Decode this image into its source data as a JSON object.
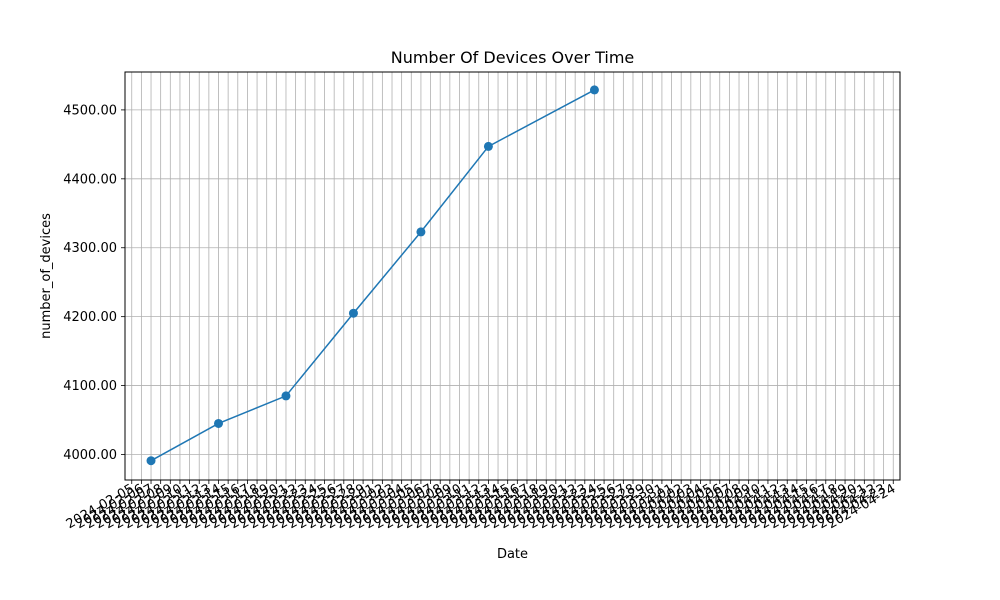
{
  "chart_data": {
    "type": "line",
    "title": "Number Of Devices Over Time",
    "xlabel": "Date",
    "ylabel": "number_of_devices",
    "grid": true,
    "legend": "none",
    "x_tick_labels": [
      "2024-02-05",
      "2024-02-06",
      "2024-02-07",
      "2024-02-08",
      "2024-02-09",
      "2024-02-10",
      "2024-02-11",
      "2024-02-12",
      "2024-02-13",
      "2024-02-14",
      "2024-02-15",
      "2024-02-16",
      "2024-02-17",
      "2024-02-18",
      "2024-02-19",
      "2024-02-20",
      "2024-02-21",
      "2024-02-22",
      "2024-02-23",
      "2024-02-24",
      "2024-02-25",
      "2024-02-26",
      "2024-02-27",
      "2024-02-28",
      "2024-02-29",
      "2024-03-01",
      "2024-03-02",
      "2024-03-03",
      "2024-03-04",
      "2024-03-05",
      "2024-03-06",
      "2024-03-07",
      "2024-03-08",
      "2024-03-09",
      "2024-03-10",
      "2024-03-11",
      "2024-03-12",
      "2024-03-13",
      "2024-03-14",
      "2024-03-15",
      "2024-03-16",
      "2024-03-17",
      "2024-03-18",
      "2024-03-19",
      "2024-03-20",
      "2024-03-21",
      "2024-03-22",
      "2024-03-23",
      "2024-03-24",
      "2024-03-25",
      "2024-03-26",
      "2024-03-27",
      "2024-03-28",
      "2024-03-29",
      "2024-03-30",
      "2024-03-31",
      "2024-04-01",
      "2024-04-02",
      "2024-04-03",
      "2024-04-04",
      "2024-04-05",
      "2024-04-06",
      "2024-04-07",
      "2024-04-08",
      "2024-04-09",
      "2024-04-10",
      "2024-04-11",
      "2024-04-12",
      "2024-04-13",
      "2024-04-14",
      "2024-04-15",
      "2024-04-16",
      "2024-04-17",
      "2024-04-18",
      "2024-04-19",
      "2024-04-20",
      "2024-04-21",
      "2024-04-22",
      "2024-04-23",
      "2024-04-24"
    ],
    "x": [
      "2024-02-07",
      "2024-02-14",
      "2024-02-21",
      "2024-02-28",
      "2024-03-06",
      "2024-03-13",
      "2024-03-24"
    ],
    "y_tick_labels": [
      "4000.00",
      "4100.00",
      "4200.00",
      "4300.00",
      "4400.00",
      "4500.00"
    ],
    "ylim": [
      3963,
      4555
    ],
    "series": [
      {
        "values": [
          3991,
          4045,
          4085,
          4205,
          4323,
          4447,
          4529
        ],
        "color": "#1f77b4"
      }
    ]
  }
}
